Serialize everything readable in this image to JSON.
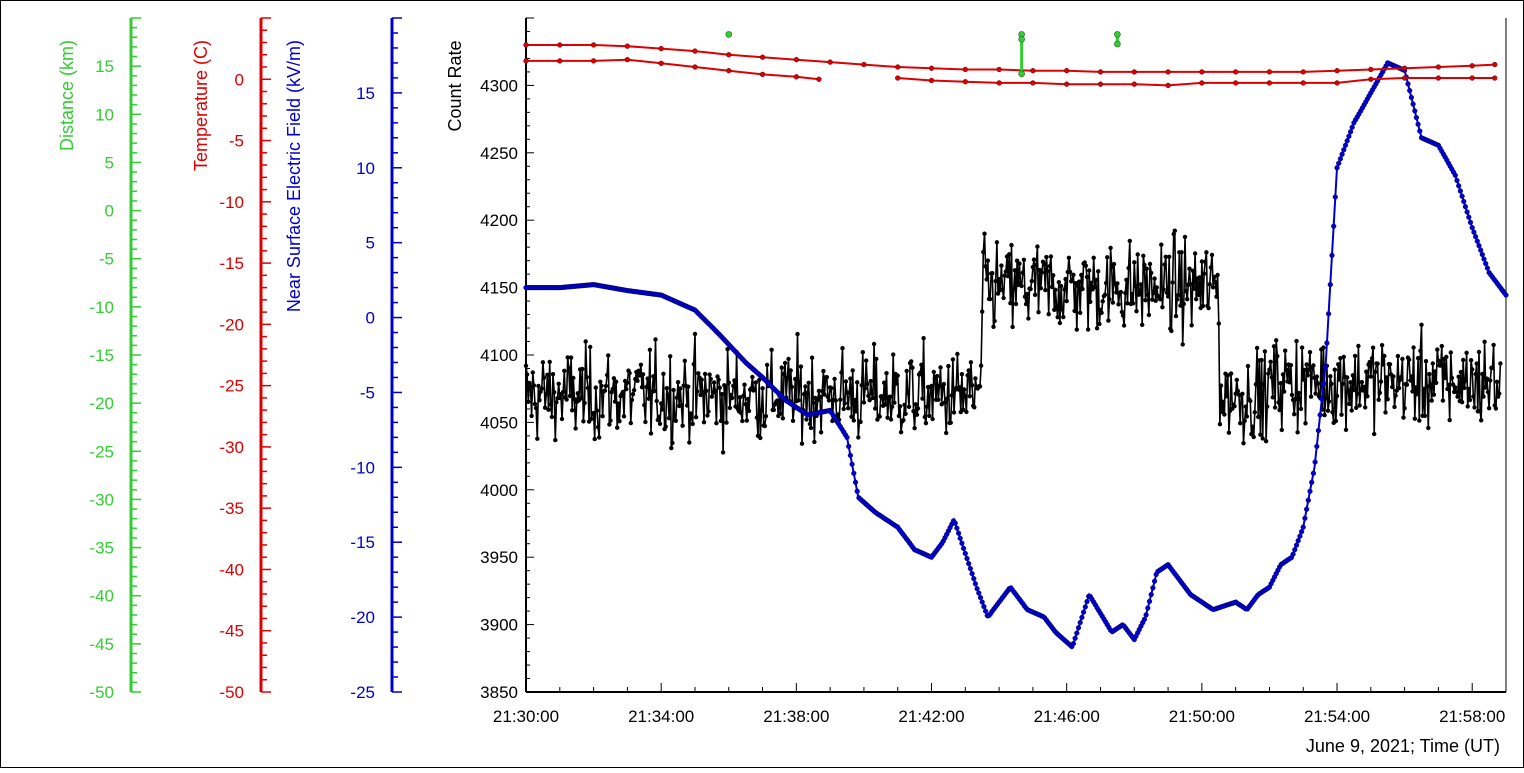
{
  "chart_data": {
    "type": "line",
    "xlabel": "June 9, 2021; Time (UT)",
    "x_ticks": [
      "21:30:00",
      "21:34:00",
      "21:38:00",
      "21:42:00",
      "21:46:00",
      "21:50:00",
      "21:54:00",
      "21:58:00"
    ],
    "xlim": [
      "21:30:00",
      "21:59:00"
    ],
    "grid": false,
    "axes": {
      "count_rate": {
        "label": "Count Rate",
        "color": "#000000",
        "ylim": [
          3850,
          4350
        ],
        "ticks": [
          3850,
          3900,
          3950,
          4000,
          4050,
          4100,
          4150,
          4200,
          4250,
          4300
        ]
      },
      "efield": {
        "label": "Near Surface Electric Field (kV/m)",
        "color": "#0000cc",
        "ylim": [
          -25,
          20
        ],
        "ticks": [
          15,
          10,
          5,
          0,
          -5,
          -10,
          -15,
          -20,
          -25
        ]
      },
      "temperature": {
        "label": "Temperature (C)",
        "color": "#dd0000",
        "ylim": [
          -50,
          5
        ],
        "ticks": [
          0,
          -5,
          -10,
          -15,
          -20,
          -25,
          -30,
          -35,
          -40,
          -45,
          -50
        ]
      },
      "distance": {
        "label": "Distance (km)",
        "color": "#33cc33",
        "ylim": [
          -50,
          20
        ],
        "ticks": [
          15,
          10,
          5,
          0,
          -5,
          -10,
          -15,
          -20,
          -25,
          -30,
          -35,
          -40,
          -45,
          -50
        ]
      }
    },
    "series": [
      {
        "axis": "efield",
        "x": [
          "21:30:00",
          "21:31:00",
          "21:32:00",
          "21:33:00",
          "21:34:00",
          "21:35:00",
          "21:35:40",
          "21:36:30",
          "21:37:00",
          "21:37:40",
          "21:38:20",
          "21:39:00",
          "21:39:30",
          "21:39:50",
          "21:40:20",
          "21:41:00",
          "21:41:30",
          "21:42:00",
          "21:42:20",
          "21:42:40",
          "21:43:20",
          "21:43:40",
          "21:44:20",
          "21:44:50",
          "21:45:20",
          "21:45:40",
          "21:46:10",
          "21:46:40",
          "21:47:20",
          "21:47:40",
          "21:48:00",
          "21:48:20",
          "21:48:40",
          "21:49:00",
          "21:49:20",
          "21:49:40",
          "21:50:20",
          "21:51:00",
          "21:51:20",
          "21:51:40",
          "21:52:00",
          "21:52:20",
          "21:52:40",
          "21:53:00",
          "21:53:20",
          "21:53:40",
          "21:54:00",
          "21:54:30",
          "21:55:00",
          "21:55:30",
          "21:56:00",
          "21:56:30",
          "21:57:00",
          "21:57:30",
          "21:58:00",
          "21:58:30",
          "21:59:00"
        ],
        "y": [
          2,
          2,
          2.2,
          1.8,
          1.5,
          0.5,
          -1,
          -3,
          -4,
          -5.5,
          -6.5,
          -6.2,
          -8,
          -12,
          -13,
          -14,
          -15.5,
          -16,
          -15,
          -13.5,
          -18,
          -20,
          -18,
          -19.5,
          -20,
          -21,
          -22,
          -18.5,
          -21,
          -20.5,
          -21.5,
          -20,
          -17,
          -16.5,
          -17.5,
          -18.5,
          -19.5,
          -19,
          -19.5,
          -18.5,
          -18,
          -16.5,
          -16,
          -14,
          -10,
          -3,
          10,
          13,
          15,
          17,
          16.5,
          12,
          11.5,
          9.5,
          6,
          3,
          1.5
        ]
      },
      {
        "axis": "temperature",
        "x": [
          "21:30:00",
          "21:31:00",
          "21:32:00",
          "21:33:00",
          "21:34:00",
          "21:35:00",
          "21:36:00",
          "21:37:00",
          "21:38:00",
          "21:39:00",
          "21:40:00",
          "21:41:00",
          "21:42:00",
          "21:43:00",
          "21:44:00",
          "21:45:00",
          "21:46:00",
          "21:47:00",
          "21:48:00",
          "21:49:00",
          "21:50:00",
          "21:51:00",
          "21:52:00",
          "21:53:00",
          "21:54:00",
          "21:55:00",
          "21:56:00",
          "21:57:00",
          "21:58:00",
          "21:58:40"
        ],
        "y": [
          2.8,
          2.8,
          2.8,
          2.7,
          2.5,
          2.3,
          2.0,
          1.8,
          1.6,
          1.4,
          1.2,
          1.0,
          0.9,
          0.8,
          0.8,
          0.7,
          0.7,
          0.6,
          0.6,
          0.6,
          0.6,
          0.6,
          0.6,
          0.6,
          0.7,
          0.8,
          0.9,
          1.0,
          1.1,
          1.2
        ]
      },
      {
        "axis": "temperature",
        "x": [
          "21:30:00",
          "21:31:00",
          "21:32:00",
          "21:33:00",
          "21:34:00",
          "21:35:00",
          "21:36:00",
          "21:37:00",
          "21:38:00",
          "21:38:40",
          "21:41:00",
          "21:42:00",
          "21:43:00",
          "21:44:00",
          "21:45:00",
          "21:46:00",
          "21:47:00",
          "21:48:00",
          "21:49:00",
          "21:50:00",
          "21:51:00",
          "21:52:00",
          "21:53:00",
          "21:54:00",
          "21:55:00",
          "21:56:00",
          "21:57:00",
          "21:58:00",
          "21:58:40"
        ],
        "y": [
          1.5,
          1.5,
          1.5,
          1.6,
          1.3,
          1.0,
          0.7,
          0.4,
          0.2,
          0.0,
          0.1,
          -0.1,
          -0.2,
          -0.3,
          -0.3,
          -0.4,
          -0.4,
          -0.4,
          -0.5,
          -0.3,
          -0.3,
          -0.3,
          -0.3,
          -0.3,
          0.0,
          0.1,
          0.1,
          0.1,
          0.1
        ]
      },
      {
        "axis": "distance",
        "x": [
          "21:36:00",
          "21:44:40",
          "21:44:40",
          "21:44:40",
          "21:47:30",
          "21:47:30"
        ],
        "y": [
          18.3,
          18.3,
          17.8,
          14.2,
          18.3,
          17.3
        ]
      }
    ]
  }
}
